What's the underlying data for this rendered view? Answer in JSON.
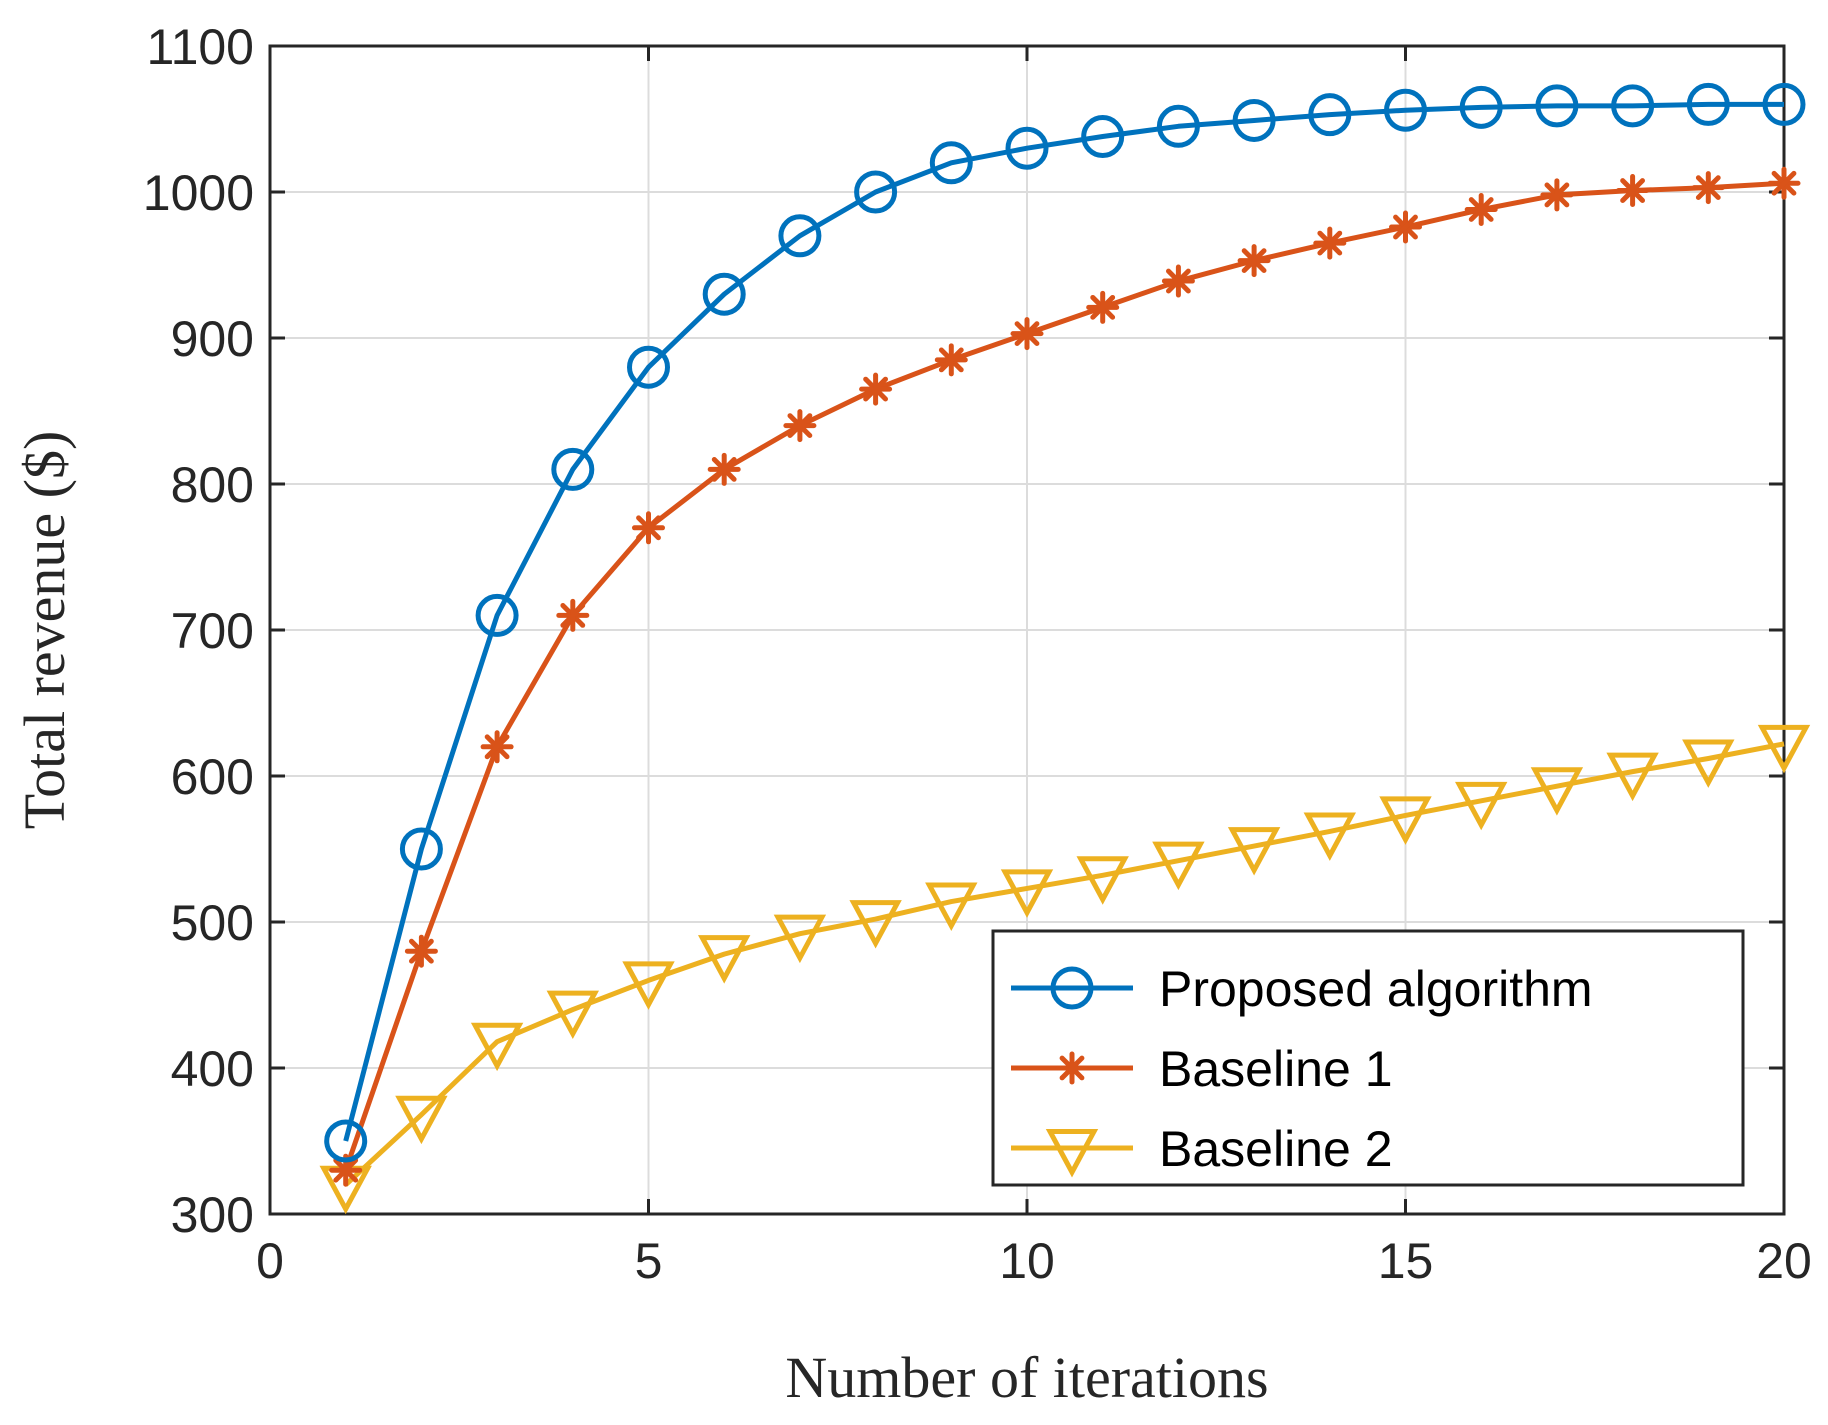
{
  "chart_data": {
    "type": "line",
    "title": "",
    "xlabel": "Number of iterations",
    "ylabel": "Total revenue ($)",
    "xlim": [
      0,
      20
    ],
    "ylim": [
      300,
      1100
    ],
    "xticks": [
      "0",
      "5",
      "10",
      "15",
      "20"
    ],
    "yticks": [
      "300",
      "400",
      "500",
      "600",
      "700",
      "800",
      "900",
      "1000",
      "1100"
    ],
    "grid": true,
    "legend_position": "bottom-right",
    "x": [
      1,
      2,
      3,
      4,
      5,
      6,
      7,
      8,
      9,
      10,
      11,
      12,
      13,
      14,
      15,
      16,
      17,
      18,
      19,
      20
    ],
    "series": [
      {
        "name": "Proposed algorithm",
        "color": "#0072BD",
        "marker": "circle",
        "values": [
          350,
          550,
          710,
          810,
          880,
          930,
          970,
          1000,
          1020,
          1030,
          1038,
          1045,
          1049,
          1053,
          1056,
          1058,
          1059,
          1059,
          1060,
          1060
        ]
      },
      {
        "name": "Baseline 1",
        "color": "#D95319",
        "marker": "asterisk",
        "values": [
          330,
          480,
          620,
          710,
          770,
          810,
          840,
          865,
          885,
          903,
          921,
          939,
          953,
          965,
          976,
          988,
          998,
          1001,
          1003,
          1006
        ]
      },
      {
        "name": "Baseline 2",
        "color": "#EDB120",
        "marker": "triangle-down",
        "values": [
          320,
          368,
          418,
          440,
          460,
          478,
          492,
          502,
          514,
          523,
          532,
          542,
          552,
          562,
          573,
          583,
          593,
          603,
          612,
          622
        ]
      }
    ]
  }
}
